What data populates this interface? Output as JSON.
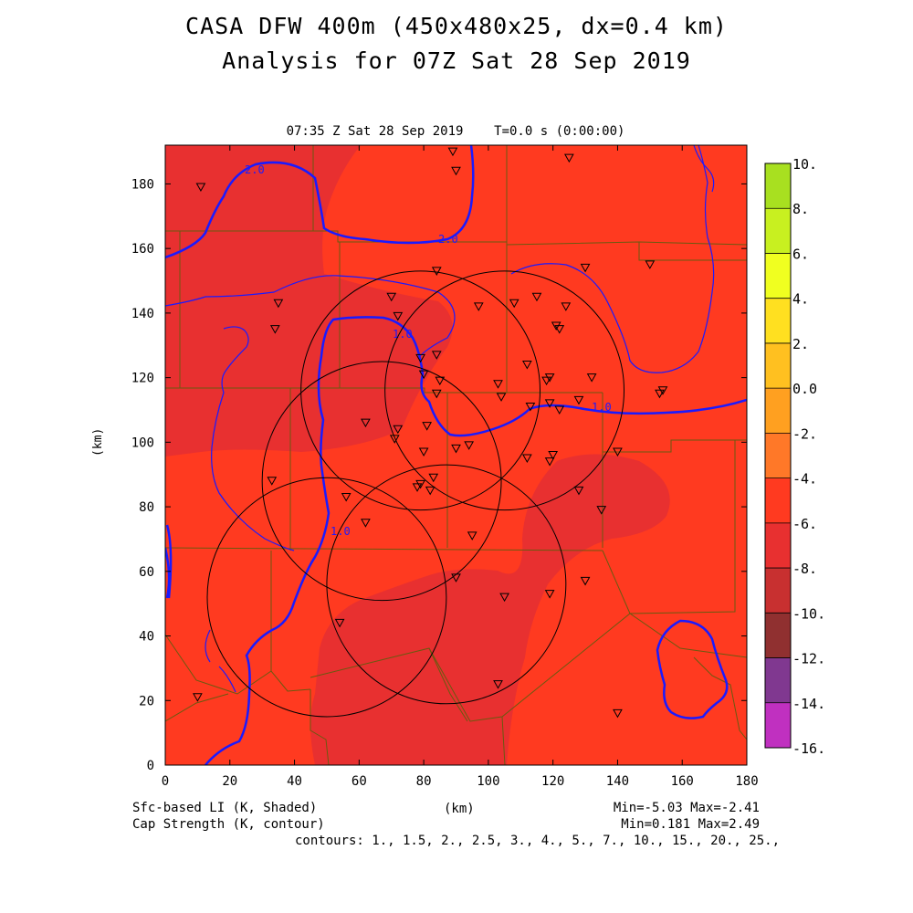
{
  "title_line1": "CASA DFW 400m (450x480x25, dx=0.4 km)",
  "title_line2": "Analysis for 07Z Sat 28 Sep 2019",
  "subtitle": "07:35 Z Sat 28 Sep 2019    T=0.0 s (0:00:00)",
  "x_axis_label": "(km)",
  "y_axis_label": "(km)",
  "x_ticks": [
    "0",
    "20",
    "40",
    "60",
    "80",
    "100",
    "120",
    "140",
    "160",
    "180"
  ],
  "y_ticks": [
    "0",
    "20",
    "40",
    "60",
    "80",
    "100",
    "120",
    "140",
    "160",
    "180"
  ],
  "x_range_km": [
    0,
    180
  ],
  "y_range_km": [
    0,
    192
  ],
  "colorbar": {
    "labels": [
      "10.",
      "8.",
      "6.",
      "4.",
      "2.",
      "0.0",
      "-2.",
      "-4.",
      "-6.",
      "-8.",
      "-10.",
      "-12.",
      "-14.",
      "-16."
    ],
    "colors": [
      "#a8e020",
      "#c8f020",
      "#f0ff20",
      "#ffe020",
      "#ffc020",
      "#ffa020",
      "#ff7828",
      "#ff3a20",
      "#e83030",
      "#c83030",
      "#903030",
      "#803890",
      "#c030c0",
      "#e040e8"
    ]
  },
  "field_colors": {
    "li_minus2_to_minus4": "#ff3a20",
    "li_minus4_to_minus6": "#e83030",
    "cap_contour": "#1a1aff",
    "boundaries": "#6a5a10"
  },
  "footer": {
    "left_line1": "Sfc-based LI (K, Shaded)",
    "left_line2": "Cap Strength (K, contour)",
    "right_line1": "Min=-5.03 Max=-2.41",
    "right_line2": "Min=0.181 Max=2.49",
    "right_line3": "contours: 1., 1.5, 2., 2.5, 3., 4., 5., 7., 10., 15., 20., 25.,"
  },
  "contour_labels": [
    "2.0",
    "2.0",
    "1.0",
    "1.0",
    "1.0"
  ],
  "radars_km": [
    {
      "x": 79,
      "y": 116,
      "r": 37
    },
    {
      "x": 105,
      "y": 116,
      "r": 37
    },
    {
      "x": 50,
      "y": 52,
      "r": 37
    },
    {
      "x": 87,
      "y": 56,
      "r": 37
    },
    {
      "x": 67,
      "y": 88,
      "r": 37
    }
  ],
  "stations_km": [
    [
      11,
      179
    ],
    [
      89,
      190
    ],
    [
      90,
      184
    ],
    [
      125,
      188
    ],
    [
      150,
      155
    ],
    [
      130,
      154
    ],
    [
      84,
      153
    ],
    [
      35,
      143
    ],
    [
      34,
      135
    ],
    [
      70,
      145
    ],
    [
      72,
      139
    ],
    [
      97,
      142
    ],
    [
      108,
      143
    ],
    [
      115,
      145
    ],
    [
      124,
      142
    ],
    [
      121,
      136
    ],
    [
      122,
      135
    ],
    [
      79,
      126
    ],
    [
      84,
      127
    ],
    [
      80,
      121
    ],
    [
      85,
      119
    ],
    [
      84,
      115
    ],
    [
      103,
      118
    ],
    [
      104,
      114
    ],
    [
      112,
      124
    ],
    [
      119,
      120
    ],
    [
      118,
      119
    ],
    [
      132,
      120
    ],
    [
      128,
      113
    ],
    [
      119,
      112
    ],
    [
      113,
      111
    ],
    [
      122,
      110
    ],
    [
      153,
      115
    ],
    [
      154,
      116
    ],
    [
      62,
      106
    ],
    [
      72,
      104
    ],
    [
      71,
      101
    ],
    [
      81,
      105
    ],
    [
      90,
      98
    ],
    [
      94,
      99
    ],
    [
      80,
      97
    ],
    [
      112,
      95
    ],
    [
      119,
      94
    ],
    [
      120,
      96
    ],
    [
      140,
      97
    ],
    [
      33,
      88
    ],
    [
      78,
      86
    ],
    [
      79,
      87
    ],
    [
      83,
      89
    ],
    [
      82,
      85
    ],
    [
      128,
      85
    ],
    [
      135,
      79
    ],
    [
      56,
      83
    ],
    [
      62,
      75
    ],
    [
      95,
      71
    ],
    [
      90,
      58
    ],
    [
      130,
      57
    ],
    [
      119,
      53
    ],
    [
      105,
      52
    ],
    [
      54,
      44
    ],
    [
      103,
      25
    ],
    [
      10,
      21
    ],
    [
      140,
      16
    ]
  ]
}
